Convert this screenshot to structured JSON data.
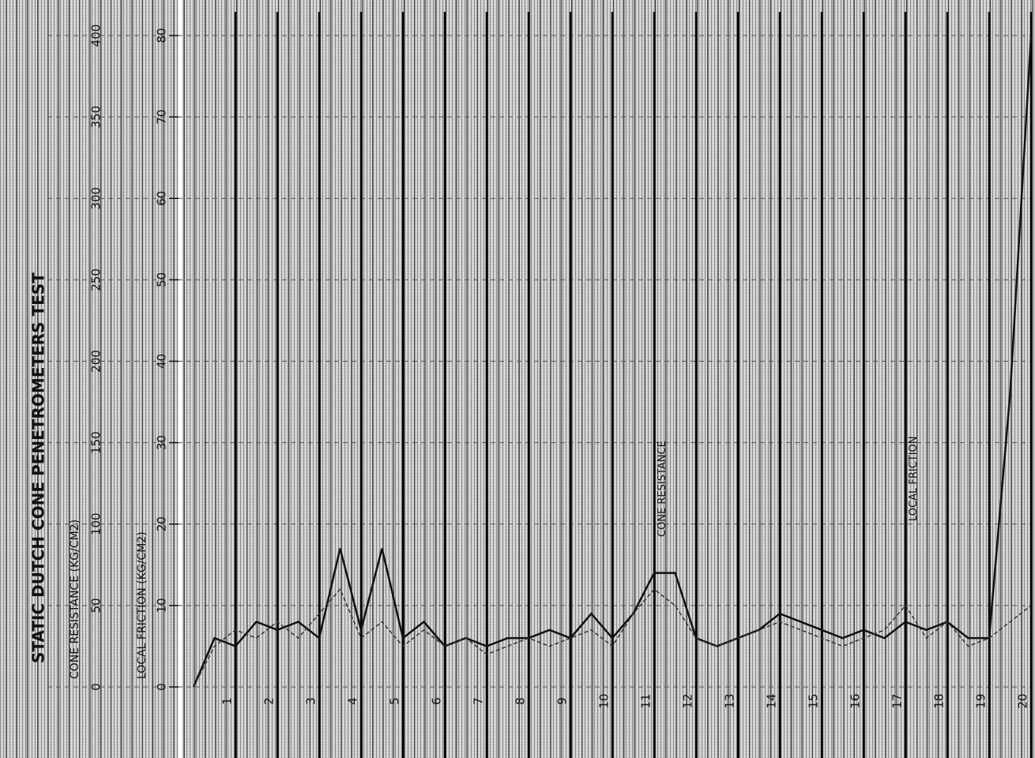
{
  "chart_data": {
    "type": "line",
    "title": "STATIC DUTCH CONE PENETROMETERS TEST",
    "y_label": "CONE RESISTANCE (KG/CM2)",
    "y2_label": "LOCAL FRICTION (KG/CM2)",
    "xlim": [
      0,
      20
    ],
    "xticks": [
      1,
      2,
      3,
      4,
      5,
      6,
      7,
      8,
      9,
      10,
      11,
      12,
      13,
      14,
      15,
      16,
      17,
      18,
      19,
      20
    ],
    "ylim": [
      0,
      400
    ],
    "yticks": [
      0,
      50,
      100,
      150,
      200,
      250,
      300,
      350,
      400
    ],
    "y2lim": [
      0,
      80
    ],
    "y2ticks": [
      0,
      10,
      20,
      30,
      40,
      50,
      60,
      70,
      80
    ],
    "x": [
      0,
      0.5,
      1,
      1.5,
      2,
      2.5,
      3,
      3.5,
      4,
      4.5,
      5,
      5.5,
      6,
      6.5,
      7,
      7.5,
      8,
      8.5,
      9,
      9.5,
      10,
      10.5,
      11,
      11.5,
      12,
      12.5,
      13,
      13.5,
      14,
      14.5,
      15,
      15.5,
      16,
      16.5,
      17,
      17.5,
      18,
      18.5,
      19,
      19.5,
      20
    ],
    "series": [
      {
        "name": "CONE RESISTANCE",
        "color": "#111111",
        "values": [
          0,
          30,
          25,
          40,
          35,
          40,
          30,
          85,
          35,
          85,
          30,
          40,
          25,
          30,
          25,
          30,
          30,
          35,
          30,
          45,
          30,
          45,
          70,
          70,
          30,
          25,
          30,
          35,
          45,
          40,
          35,
          30,
          35,
          30,
          40,
          35,
          40,
          30,
          30,
          180,
          400
        ]
      },
      {
        "name": "LOCAL FRICTION",
        "color": "#333333",
        "axis": "y2",
        "values": [
          0,
          5,
          7,
          6,
          8,
          6,
          9,
          12,
          6,
          8,
          5,
          7,
          5,
          6,
          4,
          5,
          6,
          5,
          6,
          7,
          5,
          9,
          12,
          10,
          6,
          5,
          6,
          7,
          8,
          7,
          6,
          5,
          6,
          7,
          10,
          6,
          8,
          5,
          6,
          8,
          10
        ]
      }
    ]
  }
}
